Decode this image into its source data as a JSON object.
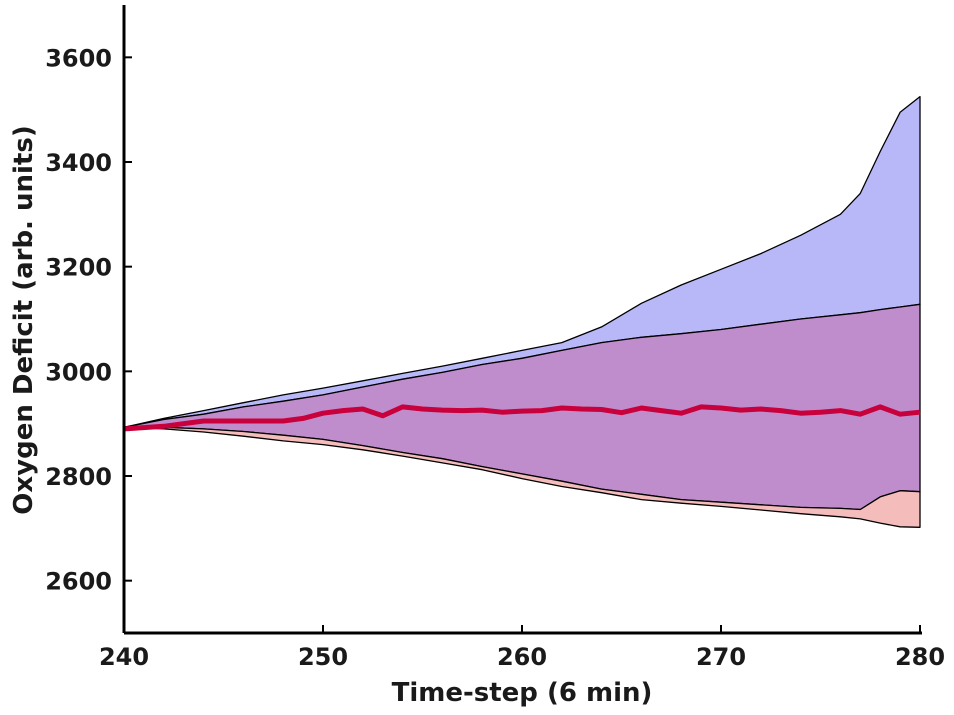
{
  "chart_data": {
    "type": "area",
    "title": "",
    "xlabel": "Time-step (6 min)",
    "ylabel": "Oxygen Deficit (arb. units)",
    "xlim": [
      240,
      280
    ],
    "ylim": [
      2500,
      3700
    ],
    "xticks": [
      240,
      250,
      260,
      270,
      280
    ],
    "yticks": [
      2600,
      2800,
      3000,
      3200,
      3400,
      3600
    ],
    "grid": false,
    "x": [
      240,
      242,
      244,
      246,
      248,
      250,
      252,
      254,
      256,
      258,
      260,
      262,
      264,
      266,
      268,
      270,
      272,
      274,
      276,
      277,
      278,
      279,
      280
    ],
    "series": [
      {
        "kind": "band",
        "color": "#b8b8f8",
        "upper": [
          2893,
          2910,
          2925,
          2940,
          2955,
          2968,
          2982,
          2996,
          3010,
          3025,
          3040,
          3055,
          3085,
          3130,
          3165,
          3195,
          3225,
          3260,
          3300,
          3340,
          3420,
          3495,
          3525
        ],
        "lower": [
          2893,
          2908,
          2918,
          2932,
          2943,
          2955,
          2970,
          2985,
          2998,
          3013,
          3025,
          3040,
          3055,
          3065,
          3072,
          3080,
          3090,
          3100,
          3108,
          3112,
          3118,
          3123,
          3128
        ]
      },
      {
        "kind": "band",
        "color": "#bf8ccc",
        "upper": [
          2893,
          2908,
          2918,
          2932,
          2943,
          2955,
          2970,
          2985,
          2998,
          3013,
          3025,
          3040,
          3055,
          3065,
          3072,
          3080,
          3090,
          3100,
          3108,
          3112,
          3118,
          3123,
          3128
        ],
        "lower": [
          2893,
          2893,
          2890,
          2885,
          2878,
          2870,
          2858,
          2845,
          2833,
          2818,
          2804,
          2790,
          2775,
          2765,
          2755,
          2750,
          2745,
          2740,
          2738,
          2736,
          2760,
          2772,
          2770
        ]
      },
      {
        "kind": "band",
        "color": "#f5bcbc",
        "upper": [
          2893,
          2893,
          2890,
          2885,
          2878,
          2870,
          2858,
          2845,
          2833,
          2818,
          2804,
          2790,
          2775,
          2765,
          2755,
          2750,
          2745,
          2740,
          2738,
          2736,
          2760,
          2772,
          2770
        ],
        "lower": [
          2893,
          2890,
          2884,
          2876,
          2867,
          2860,
          2850,
          2838,
          2825,
          2812,
          2795,
          2780,
          2768,
          2755,
          2748,
          2742,
          2735,
          2728,
          2722,
          2718,
          2710,
          2703,
          2702
        ]
      }
    ],
    "median": {
      "color": "#c8003c",
      "x": [
        240,
        242,
        244,
        246,
        248,
        249,
        250,
        251,
        252,
        253,
        254,
        255,
        256,
        257,
        258,
        259,
        260,
        261,
        262,
        263,
        264,
        265,
        266,
        267,
        268,
        269,
        270,
        271,
        272,
        273,
        274,
        275,
        276,
        277,
        278,
        279,
        280
      ],
      "y": [
        2890,
        2895,
        2905,
        2905,
        2905,
        2910,
        2920,
        2925,
        2928,
        2915,
        2932,
        2928,
        2926,
        2925,
        2926,
        2922,
        2924,
        2925,
        2930,
        2928,
        2927,
        2921,
        2930,
        2925,
        2920,
        2932,
        2930,
        2926,
        2928,
        2925,
        2920,
        2922,
        2925,
        2918,
        2932,
        2918,
        2922
      ]
    }
  }
}
